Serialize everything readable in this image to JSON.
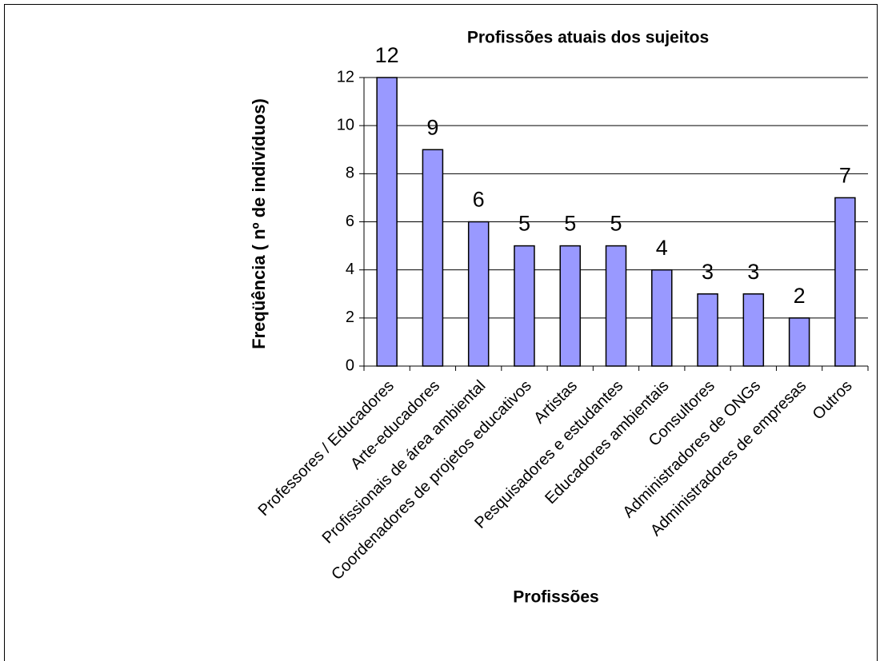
{
  "chart_data": {
    "type": "bar",
    "title": "Profissões atuais dos sujeitos",
    "x_label": "Profissões",
    "y_label": "Freqüência ( nº de indivíduos)",
    "categories": [
      "Professores / Educadores",
      "Arte-educadores",
      "Profissionais de área ambiental",
      "Coordenadores de projetos educativos",
      "Artistas",
      "Pesquisadores e estudantes",
      "Educadores ambientais",
      "Consultores",
      "Administradores de ONGs",
      "Administradores de empresas",
      "Outros"
    ],
    "values": [
      12,
      9,
      6,
      5,
      5,
      5,
      4,
      3,
      3,
      2,
      7
    ],
    "color": "#9999ff",
    "ylim": [
      0,
      12
    ],
    "yticks": [
      0,
      2,
      4,
      6,
      8,
      10,
      12
    ],
    "grid": true
  }
}
